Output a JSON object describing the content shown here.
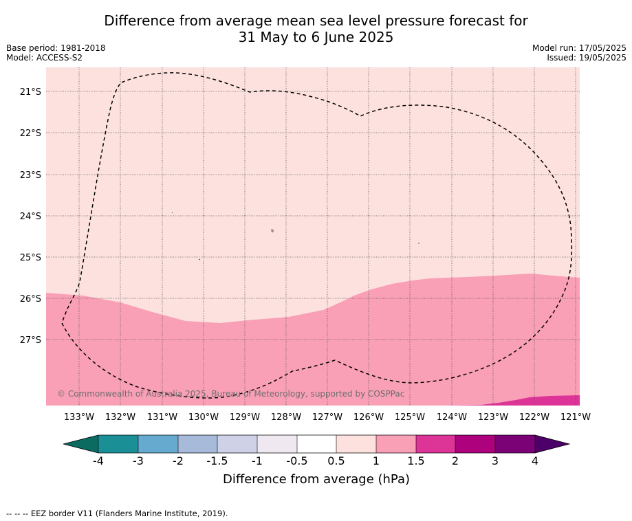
{
  "header": {
    "title_line1": "Difference from average mean sea level pressure forecast for",
    "title_line2": "31 May to 6 June 2025",
    "base_period": "Base period: 1981-2018",
    "model": "Model: ACCESS-S2",
    "model_run": "Model run: 17/05/2025",
    "issued": "Issued: 19/05/2025"
  },
  "map": {
    "lat_labels": [
      "21°S",
      "22°S",
      "23°S",
      "24°S",
      "25°S",
      "26°S",
      "27°S"
    ],
    "lon_labels": [
      "133°W",
      "132°W",
      "131°W",
      "130°W",
      "129°W",
      "128°W",
      "127°W",
      "126°W",
      "125°W",
      "124°W",
      "123°W",
      "122°W",
      "121°W"
    ],
    "copyright": "© Commonwealth of Australia 2025, Bureau of Meteorology, supported by COSPPac",
    "background_category": "0.5 to 1",
    "colors": {
      "band_0_5_1": "#fce1de",
      "band_1_1_5": "#f99fb6",
      "band_1_5_2": "#dc3497",
      "grid": "#555555",
      "eez": "#000000"
    }
  },
  "colorbar": {
    "ticks": [
      "-4",
      "-3",
      "-2",
      "-1.5",
      "-1",
      "-0.5",
      "0.5",
      "1",
      "1.5",
      "2",
      "3",
      "4"
    ],
    "colors": [
      "#0c6b61",
      "#1a8f96",
      "#66aad0",
      "#a7bada",
      "#cfd1e6",
      "#efe8f1",
      "#ffffff",
      "#fce1de",
      "#f99fb6",
      "#dc3497",
      "#ad017e",
      "#7b0177",
      "#4c0068"
    ],
    "label": "Difference from average (hPa)"
  },
  "footer": {
    "eez_legend": "--  --  -- EEZ border V11 (Flanders Marine Institute, 2019)."
  }
}
